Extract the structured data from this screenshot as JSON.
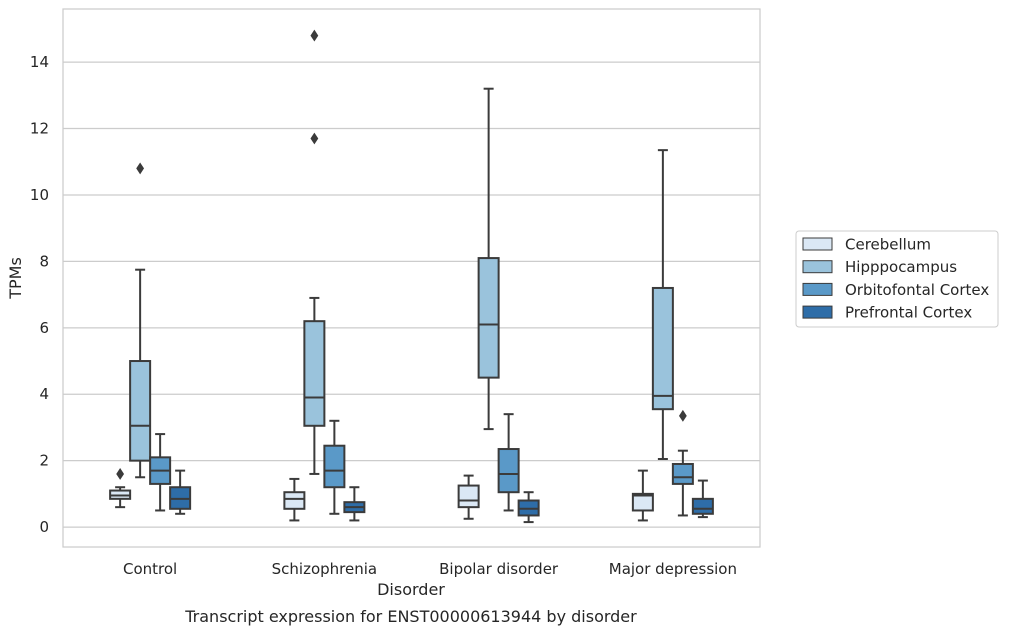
{
  "chart_data": {
    "type": "box",
    "caption": "Transcript expression for ENST00000613944 by disorder",
    "xlabel": "Disorder",
    "ylabel": "TPMs",
    "ylim": [
      -0.6,
      15.6
    ],
    "yticks": [
      0,
      2,
      4,
      6,
      8,
      10,
      12,
      14
    ],
    "grid": "horizontal",
    "legend_position": "right",
    "categories": [
      "Control",
      "Schizophrenia",
      "Bipolar disorder",
      "Major depression"
    ],
    "series": [
      {
        "name": "Cerebellum",
        "color": "#dbe8f5",
        "boxes": [
          {
            "whisker_low": 0.6,
            "q1": 0.85,
            "median": 0.95,
            "q3": 1.1,
            "whisker_high": 1.2,
            "outliers": [
              1.6
            ]
          },
          {
            "whisker_low": 0.2,
            "q1": 0.55,
            "median": 0.85,
            "q3": 1.05,
            "whisker_high": 1.45,
            "outliers": []
          },
          {
            "whisker_low": 0.25,
            "q1": 0.6,
            "median": 0.8,
            "q3": 1.25,
            "whisker_high": 1.55,
            "outliers": []
          },
          {
            "whisker_low": 0.2,
            "q1": 0.5,
            "median": 0.95,
            "q3": 1.0,
            "whisker_high": 1.7,
            "outliers": []
          }
        ]
      },
      {
        "name": "Hipppocampus",
        "color": "#9ac3dc",
        "boxes": [
          {
            "whisker_low": 1.5,
            "q1": 2.0,
            "median": 3.05,
            "q3": 5.0,
            "whisker_high": 7.75,
            "outliers": [
              10.8
            ]
          },
          {
            "whisker_low": 1.6,
            "q1": 3.05,
            "median": 3.9,
            "q3": 6.2,
            "whisker_high": 6.9,
            "outliers": [
              11.7,
              14.8
            ]
          },
          {
            "whisker_low": 2.95,
            "q1": 4.5,
            "median": 6.1,
            "q3": 8.1,
            "whisker_high": 13.2,
            "outliers": []
          },
          {
            "whisker_low": 2.05,
            "q1": 3.55,
            "median": 3.95,
            "q3": 7.2,
            "whisker_high": 11.35,
            "outliers": []
          }
        ]
      },
      {
        "name": "Orbitofontal Cortex",
        "color": "#5a99c8",
        "boxes": [
          {
            "whisker_low": 0.5,
            "q1": 1.3,
            "median": 1.7,
            "q3": 2.1,
            "whisker_high": 2.8,
            "outliers": []
          },
          {
            "whisker_low": 0.4,
            "q1": 1.2,
            "median": 1.7,
            "q3": 2.45,
            "whisker_high": 3.2,
            "outliers": []
          },
          {
            "whisker_low": 0.5,
            "q1": 1.05,
            "median": 1.6,
            "q3": 2.35,
            "whisker_high": 3.4,
            "outliers": []
          },
          {
            "whisker_low": 0.35,
            "q1": 1.3,
            "median": 1.5,
            "q3": 1.9,
            "whisker_high": 2.3,
            "outliers": [
              3.35
            ]
          }
        ]
      },
      {
        "name": "Prefrontal Cortex",
        "color": "#2e6da8",
        "boxes": [
          {
            "whisker_low": 0.4,
            "q1": 0.55,
            "median": 0.85,
            "q3": 1.2,
            "whisker_high": 1.7,
            "outliers": []
          },
          {
            "whisker_low": 0.2,
            "q1": 0.45,
            "median": 0.6,
            "q3": 0.75,
            "whisker_high": 1.2,
            "outliers": []
          },
          {
            "whisker_low": 0.15,
            "q1": 0.35,
            "median": 0.55,
            "q3": 0.8,
            "whisker_high": 1.05,
            "outliers": []
          },
          {
            "whisker_low": 0.3,
            "q1": 0.4,
            "median": 0.55,
            "q3": 0.85,
            "whisker_high": 1.4,
            "outliers": []
          }
        ]
      }
    ]
  }
}
